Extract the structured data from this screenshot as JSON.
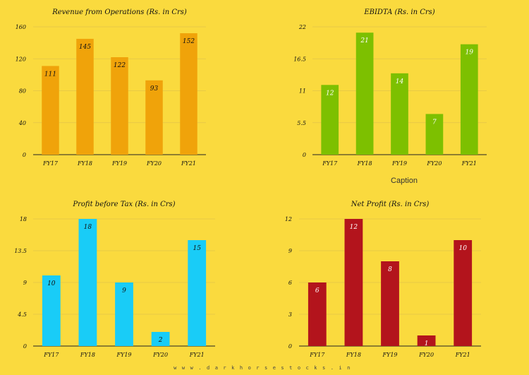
{
  "caption": "Caption",
  "footer": "www.darkhorsestocks.in",
  "chart_data": [
    {
      "type": "bar",
      "title": "Revenue from Operations (Rs. in Crs)",
      "categories": [
        "FY17",
        "FY18",
        "FY19",
        "FY20",
        "FY21"
      ],
      "values": [
        111,
        145,
        122,
        93,
        152
      ],
      "yticks": [
        "0",
        "40",
        "80",
        "120",
        "160"
      ],
      "ylim": [
        0,
        160
      ],
      "color": "#F0A30A",
      "label_color": "#111111",
      "grid": true,
      "legend": "none"
    },
    {
      "type": "bar",
      "title": "EBIDTA (Rs. in Crs)",
      "categories": [
        "FY17",
        "FY18",
        "FY19",
        "FY20",
        "FY21"
      ],
      "values": [
        12,
        21,
        14,
        7,
        19
      ],
      "yticks": [
        "0",
        "5.5",
        "11",
        "16.5",
        "22"
      ],
      "ylim": [
        0,
        22
      ],
      "color": "#7DC000",
      "label_color": "#FFFFFF",
      "grid": true,
      "legend": "none"
    },
    {
      "type": "bar",
      "title": "Profit before Tax (Rs. in Crs)",
      "categories": [
        "FY17",
        "FY18",
        "FY19",
        "FY20",
        "FY21"
      ],
      "values": [
        10,
        18,
        9,
        2,
        15
      ],
      "yticks": [
        "0",
        "4.5",
        "9",
        "13.5",
        "18"
      ],
      "ylim": [
        0,
        18
      ],
      "color": "#19CCF7",
      "label_color": "#111111",
      "grid": true,
      "legend": "none"
    },
    {
      "type": "bar",
      "title": "Net Profit (Rs. in Crs)",
      "categories": [
        "FY17",
        "FY18",
        "FY19",
        "FY20",
        "FY21"
      ],
      "values": [
        6,
        12,
        8,
        1,
        10
      ],
      "yticks": [
        "0",
        "3",
        "6",
        "9",
        "12"
      ],
      "ylim": [
        0,
        12
      ],
      "color": "#B3141C",
      "label_color": "#FFFFFF",
      "grid": true,
      "legend": "none"
    }
  ]
}
